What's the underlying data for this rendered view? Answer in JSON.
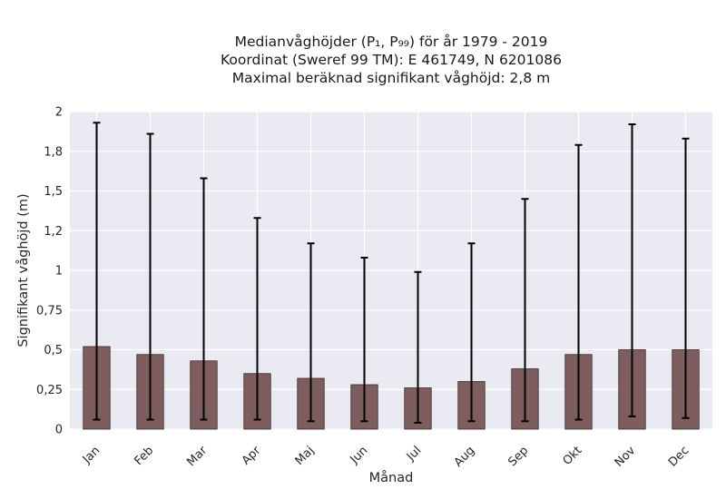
{
  "chart_data": {
    "type": "bar",
    "title_lines": [
      "Medianvåghöjder (P₁, P₉₉) för år 1979 - 2019",
      "Koordinat (Sweref 99 TM): E 461749, N 6201086",
      "Maximal beräknad signifikant våghöjd: 2,8 m"
    ],
    "xlabel": "Månad",
    "ylabel": "Signifikant våghöjd (m)",
    "categories": [
      "Jan",
      "Feb",
      "Mar",
      "Apr",
      "Maj",
      "Jun",
      "Jul",
      "Aug",
      "Sep",
      "Okt",
      "Nov",
      "Dec"
    ],
    "values": [
      0.52,
      0.47,
      0.43,
      0.35,
      0.32,
      0.28,
      0.26,
      0.3,
      0.38,
      0.47,
      0.5,
      0.5
    ],
    "p1": [
      0.06,
      0.06,
      0.06,
      0.06,
      0.05,
      0.05,
      0.04,
      0.05,
      0.05,
      0.06,
      0.08,
      0.07
    ],
    "p99": [
      1.93,
      1.86,
      1.58,
      1.33,
      1.17,
      1.08,
      0.99,
      1.17,
      1.45,
      1.79,
      1.92,
      1.83
    ],
    "ylim": [
      0,
      2
    ],
    "yticks": [
      0,
      0.25,
      0.5,
      0.75,
      1,
      1.25,
      1.5,
      1.75,
      2
    ],
    "ytick_labels": [
      "0",
      "0,25",
      "0,5",
      "0,75",
      "1",
      "1,2",
      "1,5",
      "1,8",
      "2"
    ],
    "grid": true,
    "colors": {
      "bar": "#7d5d5d",
      "bar_edge": "#3a2a2a",
      "error": "#000000",
      "background": "#eaeaf2",
      "grid": "#ffffff"
    }
  }
}
